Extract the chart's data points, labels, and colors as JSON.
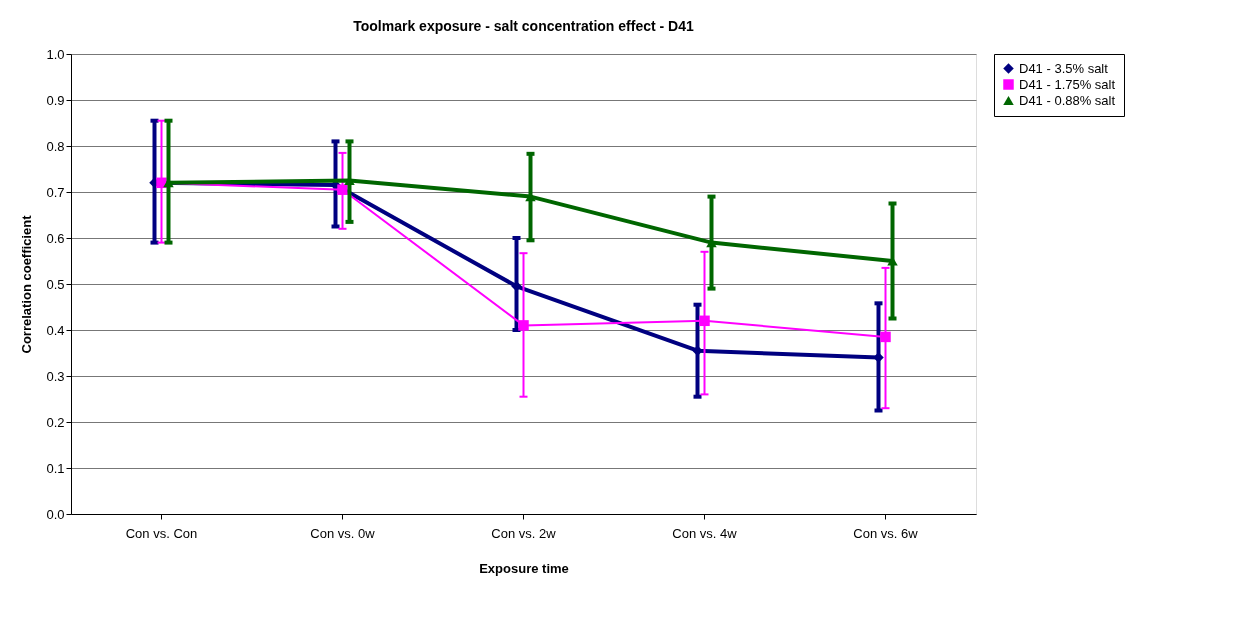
{
  "chart_data": {
    "type": "line",
    "title": "Toolmark exposure - salt concentration effect - D41",
    "xlabel": "Exposure time",
    "ylabel": "Correlation coefficient",
    "categories": [
      "Con vs. Con",
      "Con vs. 0w",
      "Con vs. 2w",
      "Con vs. 4w",
      "Con vs. 6w"
    ],
    "series": [
      {
        "name": "D41 - 3.5% salt",
        "color": "#000080",
        "marker": "diamond",
        "values": [
          0.72,
          0.715,
          0.495,
          0.355,
          0.34
        ],
        "errors": [
          [
            0.59,
            0.855
          ],
          [
            0.625,
            0.81
          ],
          [
            0.4,
            0.6
          ],
          [
            0.255,
            0.455
          ],
          [
            0.225,
            0.458
          ]
        ]
      },
      {
        "name": "D41 - 1.75% salt",
        "color": "#ff00ff",
        "marker": "square",
        "values": [
          0.72,
          0.705,
          0.41,
          0.42,
          0.385
        ],
        "errors": [
          [
            0.59,
            0.855
          ],
          [
            0.62,
            0.785
          ],
          [
            0.255,
            0.567
          ],
          [
            0.26,
            0.57
          ],
          [
            0.23,
            0.535
          ]
        ]
      },
      {
        "name": "D41 - 0.88% salt",
        "color": "#006600",
        "marker": "triangle",
        "values": [
          0.72,
          0.725,
          0.69,
          0.59,
          0.55
        ],
        "errors": [
          [
            0.59,
            0.855
          ],
          [
            0.635,
            0.81
          ],
          [
            0.595,
            0.783
          ],
          [
            0.49,
            0.69
          ],
          [
            0.425,
            0.675
          ]
        ]
      }
    ],
    "ylim": [
      0,
      1
    ],
    "yticks": [
      {
        "value": 0,
        "label": "0.0"
      },
      {
        "value": 0.1,
        "label": "0.1"
      },
      {
        "value": 0.2,
        "label": "0.2"
      },
      {
        "value": 0.3,
        "label": "0.3"
      },
      {
        "value": 0.4,
        "label": "0.4"
      },
      {
        "value": 0.5,
        "label": "0.5"
      },
      {
        "value": 0.6,
        "label": "0.6"
      },
      {
        "value": 0.7,
        "label": "0.7"
      },
      {
        "value": 0.8,
        "label": "0.8"
      },
      {
        "value": 0.9,
        "label": "0.9"
      },
      {
        "value": 1,
        "label": "1.0"
      }
    ],
    "grid": "y",
    "legend": "right"
  }
}
